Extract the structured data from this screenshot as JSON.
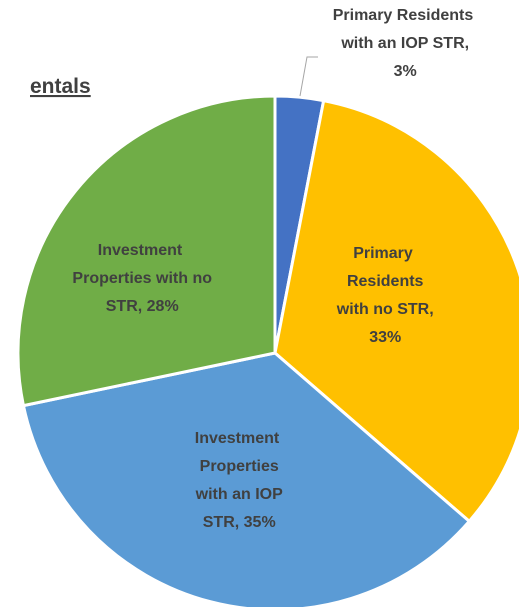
{
  "chart_data": {
    "type": "pie",
    "title": "entals",
    "categories": [
      "Primary Residents with an IOP STR, 3%",
      "Primary Residents with no STR, 33%",
      "Investment Properties with an IOP STR, 35%",
      "Investment Properties with no STR, 28%"
    ],
    "values": [
      3,
      33,
      35,
      28
    ],
    "colors": [
      "#4472c4",
      "#ffc000",
      "#5b9bd5",
      "#70ad47"
    ]
  }
}
